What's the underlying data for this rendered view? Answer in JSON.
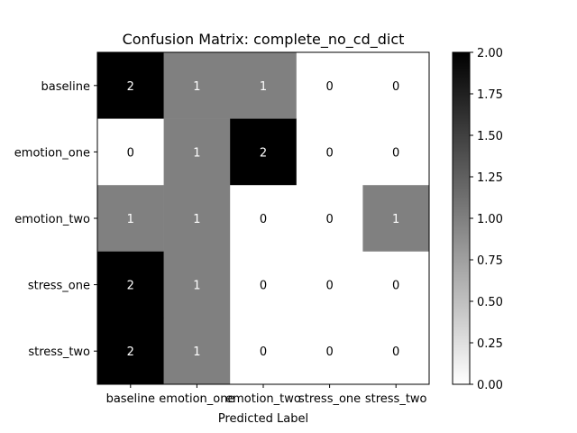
{
  "chart_data": {
    "type": "heatmap",
    "title": "Confusion Matrix: complete_no_cd_dict",
    "xlabel": "Predicted Label",
    "ylabel": "",
    "x_categories": [
      "baseline",
      "emotion_one",
      "emotion_two",
      "stress_one",
      "stress_two"
    ],
    "y_categories": [
      "baseline",
      "emotion_one",
      "emotion_two",
      "stress_one",
      "stress_two"
    ],
    "values": [
      [
        2,
        1,
        1,
        0,
        0
      ],
      [
        0,
        1,
        2,
        0,
        0
      ],
      [
        1,
        1,
        0,
        0,
        1
      ],
      [
        2,
        1,
        0,
        0,
        0
      ],
      [
        2,
        1,
        0,
        0,
        0
      ]
    ],
    "colormap": "greys",
    "vmin": 0,
    "vmax": 2,
    "colorbar_ticks": [
      "0.00",
      "0.25",
      "0.50",
      "0.75",
      "1.00",
      "1.25",
      "1.50",
      "1.75",
      "2.00"
    ],
    "grid": false
  }
}
